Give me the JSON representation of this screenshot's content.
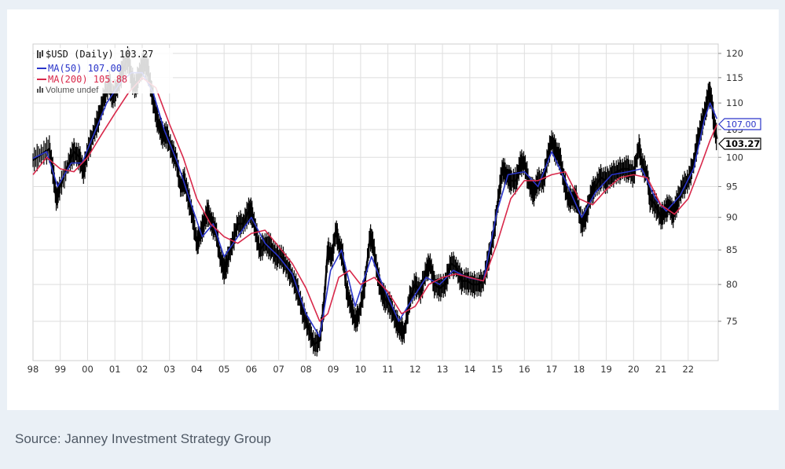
{
  "chart_data": {
    "type": "line",
    "title": "$USD (Daily) 103.27",
    "legend": [
      {
        "name": "$USD (Daily)",
        "value": "103.27",
        "color": "#000000"
      },
      {
        "name": "MA(50)",
        "value": "107.00",
        "color": "#2a35c9"
      },
      {
        "name": "MA(200)",
        "value": "105.88",
        "color": "#d8284a"
      },
      {
        "name": "Volume undef",
        "value": "",
        "color": "#555555"
      }
    ],
    "legend_text": {
      "price": "$USD (Daily) 103.27",
      "ma50": "MA(50) 107.00",
      "ma200": "MA(200) 105.88",
      "volume": "Volume undef"
    },
    "x_ticks": [
      "98",
      "99",
      "00",
      "01",
      "02",
      "03",
      "04",
      "05",
      "06",
      "07",
      "08",
      "09",
      "10",
      "11",
      "12",
      "13",
      "14",
      "15",
      "16",
      "17",
      "18",
      "19",
      "20",
      "21",
      "22"
    ],
    "y_ticks": [
      75,
      80,
      85,
      90,
      95,
      100,
      105,
      110,
      115,
      120
    ],
    "ylim": [
      70,
      122
    ],
    "xlim": [
      1998.0,
      2023.1
    ],
    "y_scale": "log",
    "grid": true,
    "value_tags": {
      "ma50": "107.00",
      "price": "103.27"
    },
    "series": [
      {
        "name": "$USD (Daily)",
        "color": "#000000",
        "points": [
          [
            1998.0,
            99.5
          ],
          [
            1998.3,
            100.5
          ],
          [
            1998.6,
            101.5
          ],
          [
            1998.75,
            97
          ],
          [
            1998.85,
            93
          ],
          [
            1999.0,
            95
          ],
          [
            1999.3,
            99
          ],
          [
            1999.5,
            101
          ],
          [
            1999.7,
            100
          ],
          [
            1999.85,
            97.5
          ],
          [
            2000.0,
            101
          ],
          [
            2000.2,
            104
          ],
          [
            2000.4,
            107
          ],
          [
            2000.6,
            111
          ],
          [
            2000.8,
            114
          ],
          [
            2000.9,
            111
          ],
          [
            2001.1,
            113
          ],
          [
            2001.3,
            117
          ],
          [
            2001.5,
            119
          ],
          [
            2001.6,
            115
          ],
          [
            2001.75,
            113
          ],
          [
            2001.9,
            116
          ],
          [
            2002.05,
            118
          ],
          [
            2002.2,
            117
          ],
          [
            2002.35,
            112
          ],
          [
            2002.5,
            108
          ],
          [
            2002.6,
            106
          ],
          [
            2002.75,
            104
          ],
          [
            2002.9,
            104
          ],
          [
            2003.1,
            101
          ],
          [
            2003.25,
            99.5
          ],
          [
            2003.4,
            95
          ],
          [
            2003.55,
            96
          ],
          [
            2003.7,
            93
          ],
          [
            2003.85,
            90
          ],
          [
            2004.0,
            86
          ],
          [
            2004.1,
            87
          ],
          [
            2004.25,
            89
          ],
          [
            2004.4,
            91
          ],
          [
            2004.55,
            89
          ],
          [
            2004.7,
            88
          ],
          [
            2004.85,
            84
          ],
          [
            2005.0,
            82
          ],
          [
            2005.1,
            83
          ],
          [
            2005.3,
            86
          ],
          [
            2005.5,
            89
          ],
          [
            2005.7,
            89
          ],
          [
            2005.9,
            91
          ],
          [
            2006.0,
            91
          ],
          [
            2006.15,
            88
          ],
          [
            2006.3,
            85
          ],
          [
            2006.5,
            86
          ],
          [
            2006.7,
            85.5
          ],
          [
            2006.9,
            84
          ],
          [
            2007.1,
            84
          ],
          [
            2007.3,
            82.5
          ],
          [
            2007.5,
            81
          ],
          [
            2007.7,
            79
          ],
          [
            2007.9,
            76
          ],
          [
            2008.1,
            74
          ],
          [
            2008.3,
            72
          ],
          [
            2008.5,
            72.5
          ],
          [
            2008.65,
            77
          ],
          [
            2008.8,
            85
          ],
          [
            2008.95,
            84
          ],
          [
            2009.1,
            88
          ],
          [
            2009.2,
            86
          ],
          [
            2009.35,
            84
          ],
          [
            2009.5,
            79
          ],
          [
            2009.65,
            77
          ],
          [
            2009.8,
            75
          ],
          [
            2009.95,
            76
          ],
          [
            2010.15,
            80
          ],
          [
            2010.35,
            87
          ],
          [
            2010.45,
            86
          ],
          [
            2010.6,
            82
          ],
          [
            2010.75,
            79
          ],
          [
            2010.9,
            78
          ],
          [
            2011.1,
            77
          ],
          [
            2011.3,
            75
          ],
          [
            2011.45,
            74
          ],
          [
            2011.6,
            73.5
          ],
          [
            2011.8,
            78
          ],
          [
            2012.0,
            80
          ],
          [
            2012.2,
            79
          ],
          [
            2012.4,
            82
          ],
          [
            2012.55,
            83
          ],
          [
            2012.7,
            80
          ],
          [
            2012.9,
            79.5
          ],
          [
            2013.1,
            80
          ],
          [
            2013.3,
            83
          ],
          [
            2013.5,
            82.5
          ],
          [
            2013.7,
            80.5
          ],
          [
            2013.9,
            80.5
          ],
          [
            2014.1,
            80
          ],
          [
            2014.3,
            80
          ],
          [
            2014.5,
            80.5
          ],
          [
            2014.7,
            84
          ],
          [
            2014.9,
            88
          ],
          [
            2015.1,
            95
          ],
          [
            2015.2,
            98
          ],
          [
            2015.35,
            97
          ],
          [
            2015.5,
            96
          ],
          [
            2015.7,
            96
          ],
          [
            2015.85,
            99
          ],
          [
            2016.0,
            99
          ],
          [
            2016.2,
            95
          ],
          [
            2016.35,
            94
          ],
          [
            2016.5,
            96
          ],
          [
            2016.7,
            96
          ],
          [
            2016.85,
            100
          ],
          [
            2017.0,
            103
          ],
          [
            2017.15,
            101
          ],
          [
            2017.3,
            100
          ],
          [
            2017.45,
            96
          ],
          [
            2017.6,
            93
          ],
          [
            2017.75,
            93
          ],
          [
            2017.9,
            93
          ],
          [
            2018.1,
            89
          ],
          [
            2018.25,
            90
          ],
          [
            2018.45,
            94
          ],
          [
            2018.6,
            95
          ],
          [
            2018.8,
            96.5
          ],
          [
            2019.0,
            96
          ],
          [
            2019.2,
            97
          ],
          [
            2019.4,
            97.5
          ],
          [
            2019.6,
            98
          ],
          [
            2019.8,
            98
          ],
          [
            2020.0,
            97
          ],
          [
            2020.2,
            102
          ],
          [
            2020.3,
            99
          ],
          [
            2020.5,
            97
          ],
          [
            2020.6,
            93
          ],
          [
            2020.8,
            92
          ],
          [
            2021.0,
            90
          ],
          [
            2021.15,
            91
          ],
          [
            2021.3,
            92
          ],
          [
            2021.45,
            90.5
          ],
          [
            2021.6,
            92.5
          ],
          [
            2021.8,
            95
          ],
          [
            2022.0,
            96
          ],
          [
            2022.2,
            99
          ],
          [
            2022.35,
            103
          ],
          [
            2022.5,
            106
          ],
          [
            2022.65,
            109
          ],
          [
            2022.75,
            112
          ],
          [
            2022.85,
            111
          ],
          [
            2022.95,
            106
          ],
          [
            2023.05,
            103.3
          ]
        ]
      },
      {
        "name": "MA(50)",
        "color": "#2a35c9",
        "points": [
          [
            1998.0,
            99.8
          ],
          [
            1998.5,
            101
          ],
          [
            1998.9,
            95
          ],
          [
            1999.4,
            99
          ],
          [
            1999.8,
            99
          ],
          [
            2000.3,
            105
          ],
          [
            2000.7,
            110
          ],
          [
            2001.2,
            114
          ],
          [
            2001.6,
            116
          ],
          [
            2002.0,
            116
          ],
          [
            2002.4,
            112
          ],
          [
            2002.8,
            105
          ],
          [
            2003.3,
            99
          ],
          [
            2003.8,
            92
          ],
          [
            2004.2,
            87
          ],
          [
            2004.6,
            89
          ],
          [
            2005.0,
            84
          ],
          [
            2005.5,
            87
          ],
          [
            2006.0,
            90
          ],
          [
            2006.5,
            86
          ],
          [
            2007.0,
            84
          ],
          [
            2007.5,
            81.5
          ],
          [
            2008.0,
            76
          ],
          [
            2008.5,
            73
          ],
          [
            2008.9,
            82
          ],
          [
            2009.3,
            85
          ],
          [
            2009.8,
            77
          ],
          [
            2010.4,
            84
          ],
          [
            2010.8,
            80
          ],
          [
            2011.4,
            75
          ],
          [
            2011.9,
            78
          ],
          [
            2012.4,
            81
          ],
          [
            2012.9,
            80
          ],
          [
            2013.4,
            82
          ],
          [
            2013.9,
            81
          ],
          [
            2014.5,
            80.5
          ],
          [
            2015.0,
            91
          ],
          [
            2015.4,
            97
          ],
          [
            2016.0,
            97.5
          ],
          [
            2016.5,
            95
          ],
          [
            2017.0,
            101
          ],
          [
            2017.5,
            96
          ],
          [
            2018.1,
            90
          ],
          [
            2018.6,
            94
          ],
          [
            2019.2,
            97
          ],
          [
            2019.8,
            97.5
          ],
          [
            2020.3,
            98
          ],
          [
            2020.8,
            93
          ],
          [
            2021.2,
            91
          ],
          [
            2021.7,
            93.5
          ],
          [
            2022.2,
            98
          ],
          [
            2022.6,
            107
          ],
          [
            2022.8,
            110
          ],
          [
            2023.05,
            107
          ]
        ]
      },
      {
        "name": "MA(200)",
        "color": "#d8284a",
        "points": [
          [
            1998.0,
            97
          ],
          [
            1998.5,
            100
          ],
          [
            1999.0,
            98
          ],
          [
            1999.5,
            97.5
          ],
          [
            2000.0,
            100
          ],
          [
            2000.5,
            104
          ],
          [
            2001.0,
            108
          ],
          [
            2001.5,
            112
          ],
          [
            2002.0,
            115
          ],
          [
            2002.5,
            113
          ],
          [
            2003.0,
            106
          ],
          [
            2003.5,
            100
          ],
          [
            2004.0,
            93
          ],
          [
            2004.5,
            89
          ],
          [
            2005.0,
            87
          ],
          [
            2005.5,
            86
          ],
          [
            2006.0,
            87.5
          ],
          [
            2006.5,
            88
          ],
          [
            2007.0,
            85.5
          ],
          [
            2007.5,
            83
          ],
          [
            2008.0,
            79.5
          ],
          [
            2008.5,
            75
          ],
          [
            2008.8,
            76
          ],
          [
            2009.2,
            81
          ],
          [
            2009.6,
            82
          ],
          [
            2010.0,
            80
          ],
          [
            2010.5,
            81
          ],
          [
            2011.0,
            79
          ],
          [
            2011.5,
            76
          ],
          [
            2012.0,
            77
          ],
          [
            2012.5,
            80
          ],
          [
            2013.0,
            81
          ],
          [
            2013.5,
            81.5
          ],
          [
            2014.0,
            81
          ],
          [
            2014.5,
            80.5
          ],
          [
            2015.0,
            86
          ],
          [
            2015.5,
            93
          ],
          [
            2016.0,
            96
          ],
          [
            2016.5,
            96
          ],
          [
            2017.0,
            97
          ],
          [
            2017.5,
            97.5
          ],
          [
            2018.0,
            93
          ],
          [
            2018.5,
            92
          ],
          [
            2019.0,
            94.5
          ],
          [
            2019.5,
            96.5
          ],
          [
            2020.0,
            97
          ],
          [
            2020.5,
            96.5
          ],
          [
            2021.0,
            92
          ],
          [
            2021.5,
            90.5
          ],
          [
            2022.0,
            93
          ],
          [
            2022.5,
            99
          ],
          [
            2022.8,
            103
          ],
          [
            2023.05,
            105.9
          ]
        ]
      }
    ]
  },
  "footer": {
    "source": "Source: Janney Investment Strategy Group"
  }
}
